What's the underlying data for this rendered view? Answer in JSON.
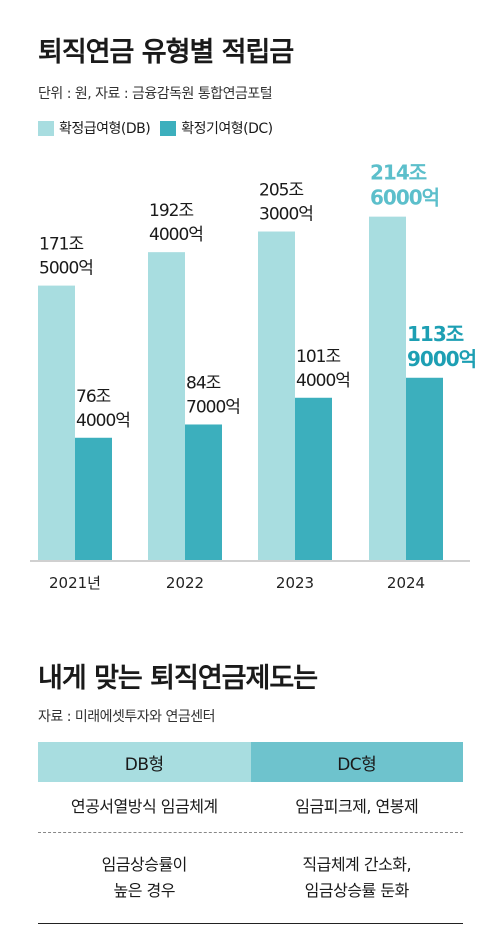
{
  "section1": {
    "title": "퇴직연금 유형별 적립금",
    "subtitle": "단위 : 원, 자료 : 금융감독원 통합연금포털"
  },
  "legend": {
    "db": "확정급여형(DB)",
    "dc": "확정기여형(DC)"
  },
  "colors": {
    "db": "#a8dde0",
    "dc": "#3cafbd",
    "db_highlight_text": "#5cbfcb",
    "dc_highlight_text": "#1d9fb3"
  },
  "chart_data": {
    "type": "bar",
    "categories": [
      "2021년",
      "2022",
      "2023",
      "2024"
    ],
    "series": [
      {
        "name": "확정급여형(DB)",
        "values": [
          171.5,
          192.4,
          205.3,
          214.6
        ],
        "labels": [
          [
            "171조",
            "5000억"
          ],
          [
            "192조",
            "4000억"
          ],
          [
            "205조",
            "3000억"
          ],
          [
            "214조",
            "6000억"
          ]
        ]
      },
      {
        "name": "확정기여형(DC)",
        "values": [
          76.4,
          84.7,
          101.4,
          113.9
        ],
        "labels": [
          [
            "76조",
            "4000억"
          ],
          [
            "84조",
            "7000억"
          ],
          [
            "101조",
            "4000억"
          ],
          [
            "113조",
            "9000억"
          ]
        ]
      }
    ],
    "ylim": [
      0,
      240
    ],
    "unit": "조 원",
    "highlight_index": 3
  },
  "section2": {
    "title": "내게 맞는 퇴직연금제도는",
    "subtitle": "자료 : 미래에셋투자와 연금센터",
    "headers": [
      "DB형",
      "DC형"
    ],
    "rows": [
      [
        "연공서열방식 임금체계",
        "임금피크제, 연봉제"
      ],
      [
        "임금상승률이\n높은 경우",
        "직급체계 간소화,\n임금상승률 둔화"
      ]
    ]
  }
}
